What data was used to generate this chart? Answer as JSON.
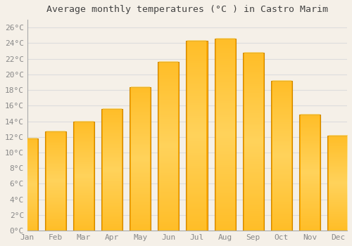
{
  "months": [
    "Jan",
    "Feb",
    "Mar",
    "Apr",
    "May",
    "Jun",
    "Jul",
    "Aug",
    "Sep",
    "Oct",
    "Nov",
    "Dec"
  ],
  "values": [
    11.8,
    12.7,
    14.0,
    15.6,
    18.4,
    21.6,
    24.3,
    24.6,
    22.8,
    19.2,
    14.9,
    12.2
  ],
  "bar_color": "#FFAA00",
  "bar_edge_color": "#CC8800",
  "background_color": "#F5F0E8",
  "plot_bg_color": "#F5F0E8",
  "grid_color": "#DDDDDD",
  "title": "Average monthly temperatures (°C ) in Castro Marim",
  "title_fontsize": 9.5,
  "tick_label_color": "#888888",
  "axis_label_fontsize": 8,
  "ylim": [
    0,
    27
  ],
  "ytick_step": 2,
  "font_family": "monospace"
}
